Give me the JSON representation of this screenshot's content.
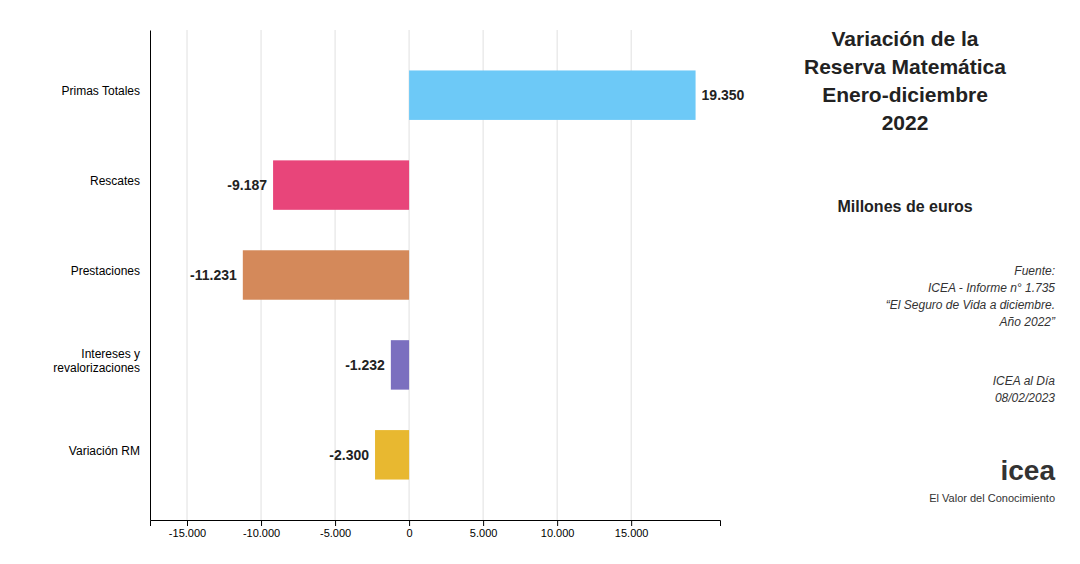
{
  "chart_data": {
    "type": "bar",
    "orientation": "horizontal",
    "title": "Variación de la\nReserva Matemática\nEnero-diciembre\n2022",
    "subtitle": "Millones de euros",
    "categories": [
      "Primas Totales",
      "Rescates",
      "Prestaciones",
      "Intereses y\nrevalorizaciones",
      "Variación RM"
    ],
    "values": [
      19350,
      -9187,
      -11231,
      -1232,
      -2300
    ],
    "value_labels": [
      "19.350",
      "-9.187",
      "-11.231",
      "-1.232",
      "-2.300"
    ],
    "colors": [
      "#6DC9F7",
      "#E8457A",
      "#D4895A",
      "#7B6FBF",
      "#E8B830"
    ],
    "data_labels": true,
    "xlim": [
      -17500,
      21000
    ],
    "xticks": [
      {
        "value": -15000,
        "label": "-15.000"
      },
      {
        "value": -10000,
        "label": "-10.000"
      },
      {
        "value": -5000,
        "label": "-5.000"
      },
      0,
      {
        "value": 5000,
        "label": "5.000"
      },
      {
        "value": 10000,
        "label": "10.000"
      },
      {
        "value": 15000,
        "label": "15.000"
      }
    ],
    "grid": true,
    "annotations": [
      "Fuente:\nICEA - Informe n° 1.735\n“El Seguro de Vida a diciembre.\nAño 2022”",
      "ICEA al Día\n08/02/2023",
      "icea",
      "El Valor del Conocimiento"
    ]
  }
}
